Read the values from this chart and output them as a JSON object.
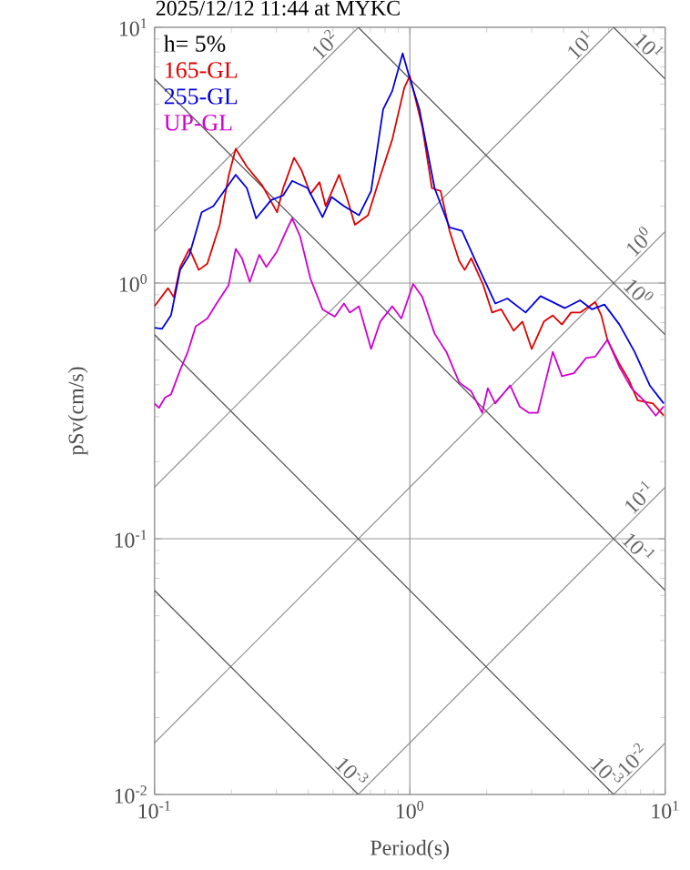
{
  "chart_data": {
    "type": "line",
    "title": "2025/12/12 11:44 at MYKC",
    "xlabel": "Period(s)",
    "ylabel": "pSv(cm/s)",
    "legend_title": "h= 5%",
    "legend": "top left",
    "log": "xy",
    "grid": true,
    "xlim": [
      0.1,
      10
    ],
    "ylim": [
      0.01,
      10
    ],
    "xticks": [
      {
        "value": 0.1,
        "label": "10$^{-1}$"
      },
      {
        "value": 1,
        "label": "10$^{0}$"
      },
      {
        "value": 10,
        "label": "10$^{1}$"
      }
    ],
    "yticks": [
      {
        "value": 0.01,
        "label": "10$^{-2}$"
      },
      {
        "value": 0.1,
        "label": "10$^{-1}$"
      },
      {
        "value": 1,
        "label": "10$^{0}$"
      },
      {
        "value": 10,
        "label": "10$^{1}$"
      }
    ],
    "series": [
      {
        "type": "line",
        "color": "#8c8c8c",
        "x": [
          0.1,
          0.628
        ],
        "values": [
          1.59,
          10
        ]
      },
      {
        "type": "line",
        "color": "#8c8c8c",
        "x": [
          0.1,
          6.28
        ],
        "values": [
          0.159,
          10
        ]
      },
      {
        "type": "line",
        "color": "#8c8c8c",
        "x": [
          0.1,
          10
        ],
        "values": [
          0.0159,
          1.59
        ]
      },
      {
        "type": "line",
        "color": "#8c8c8c",
        "x": [
          0.628,
          10
        ],
        "values": [
          0.01,
          0.159
        ]
      },
      {
        "type": "line",
        "color": "#8c8c8c",
        "x": [
          6.28,
          10
        ],
        "values": [
          0.01,
          0.0159
        ]
      },
      {
        "type": "line",
        "color": "#505050",
        "x": [
          6.28,
          10
        ],
        "values": [
          10,
          6.28
        ]
      },
      {
        "type": "line",
        "color": "#505050",
        "x": [
          0.628,
          10
        ],
        "values": [
          10,
          0.628
        ]
      },
      {
        "type": "line",
        "color": "#505050",
        "x": [
          0.1,
          10
        ],
        "values": [
          6.28,
          0.0628
        ]
      },
      {
        "type": "line",
        "color": "#505050",
        "x": [
          0.1,
          6.28
        ],
        "values": [
          0.628,
          0.01
        ]
      },
      {
        "type": "line",
        "color": "#505050",
        "x": [
          0.1,
          0.628
        ],
        "values": [
          0.0628,
          0.01
        ]
      },
      {
        "type": "line",
        "name": "165-GL",
        "color": "#e00000",
        "x": [
          0.1,
          0.113,
          0.119,
          0.126,
          0.137,
          0.149,
          0.161,
          0.18,
          0.195,
          0.208,
          0.23,
          0.264,
          0.302,
          0.319,
          0.352,
          0.376,
          0.408,
          0.443,
          0.468,
          0.528,
          0.566,
          0.609,
          0.686,
          0.766,
          0.853,
          0.952,
          1.0,
          1.12,
          1.22,
          1.32,
          1.43,
          1.56,
          1.64,
          1.74,
          1.94,
          2.1,
          2.28,
          2.55,
          2.76,
          3.0,
          3.35,
          3.63,
          3.94,
          4.28,
          4.64,
          5.32,
          5.62,
          5.94,
          6.62,
          7.18,
          7.8,
          8.95,
          9.87
        ],
        "values": [
          0.811,
          0.955,
          0.88,
          1.155,
          1.36,
          1.125,
          1.19,
          1.69,
          2.62,
          3.35,
          2.85,
          2.41,
          1.89,
          2.35,
          3.09,
          2.77,
          2.23,
          2.48,
          2.0,
          2.65,
          2.17,
          1.69,
          1.84,
          2.62,
          3.64,
          5.82,
          6.46,
          4.06,
          2.35,
          2.29,
          1.6,
          1.22,
          1.125,
          1.25,
          0.98,
          0.767,
          0.789,
          0.651,
          0.707,
          0.552,
          0.707,
          0.747,
          0.688,
          0.767,
          0.767,
          0.842,
          0.747,
          0.6,
          0.482,
          0.421,
          0.348,
          0.338,
          0.303
        ]
      },
      {
        "type": "line",
        "name": "255-GL",
        "color": "#0000e0",
        "x": [
          0.1,
          0.107,
          0.116,
          0.126,
          0.137,
          0.153,
          0.17,
          0.185,
          0.208,
          0.23,
          0.25,
          0.286,
          0.319,
          0.346,
          0.398,
          0.455,
          0.494,
          0.552,
          0.632,
          0.705,
          0.786,
          0.853,
          0.937,
          1.0,
          1.09,
          1.25,
          1.43,
          1.6,
          1.83,
          2.16,
          2.41,
          2.84,
          3.25,
          4.05,
          4.64,
          5.17,
          5.78,
          6.62,
          7.59,
          8.7,
          9.87
        ],
        "values": [
          0.669,
          0.662,
          0.747,
          1.125,
          1.29,
          1.89,
          2.0,
          2.25,
          2.65,
          2.35,
          1.79,
          2.11,
          2.2,
          2.51,
          2.35,
          1.81,
          2.17,
          2.0,
          1.84,
          2.29,
          4.78,
          5.63,
          7.91,
          6.29,
          4.78,
          2.35,
          1.65,
          1.6,
          1.19,
          0.832,
          0.87,
          0.767,
          0.889,
          0.798,
          0.856,
          0.789,
          0.824,
          0.688,
          0.538,
          0.398,
          0.338
        ]
      },
      {
        "type": "line",
        "name": "UP-GL",
        "color": "#d000d0",
        "x": [
          0.1,
          0.104,
          0.11,
          0.116,
          0.126,
          0.135,
          0.145,
          0.161,
          0.175,
          0.195,
          0.208,
          0.22,
          0.236,
          0.257,
          0.274,
          0.302,
          0.328,
          0.346,
          0.372,
          0.408,
          0.455,
          0.508,
          0.552,
          0.582,
          0.632,
          0.705,
          0.766,
          0.853,
          0.926,
          1.03,
          1.12,
          1.25,
          1.39,
          1.56,
          1.74,
          1.92,
          2.02,
          2.16,
          2.47,
          2.69,
          2.92,
          3.17,
          3.63,
          3.94,
          4.39,
          4.9,
          5.32,
          5.94,
          6.62,
          7.38,
          8.24,
          9.18,
          9.87
        ],
        "values": [
          0.338,
          0.325,
          0.357,
          0.367,
          0.457,
          0.538,
          0.677,
          0.727,
          0.832,
          0.98,
          1.36,
          1.25,
          1.01,
          1.29,
          1.155,
          1.33,
          1.6,
          1.79,
          1.52,
          1.04,
          0.789,
          0.739,
          0.832,
          0.767,
          0.811,
          0.552,
          0.707,
          0.811,
          0.727,
          0.992,
          0.88,
          0.634,
          0.538,
          0.409,
          0.377,
          0.311,
          0.388,
          0.338,
          0.398,
          0.329,
          0.311,
          0.311,
          0.538,
          0.432,
          0.444,
          0.509,
          0.515,
          0.6,
          0.469,
          0.388,
          0.348,
          0.303,
          0.329
        ]
      }
    ],
    "annotations": [
      {
        "text": "10$^{2}$",
        "x": 0.5,
        "y": 7.96
      },
      {
        "text": "10$^{1}$",
        "x": 5,
        "y": 7.96
      },
      {
        "text": "10$^{1}$",
        "x": 8,
        "y": 7.85
      },
      {
        "text": "10$^{0}$",
        "x": 8.5,
        "y": 1.35
      },
      {
        "text": "10$^{0}$",
        "x": 7.3,
        "y": 0.86
      },
      {
        "text": "10$^{-1}$",
        "x": 8.5,
        "y": 0.135
      },
      {
        "text": "10$^{-1}$",
        "x": 7.3,
        "y": 0.086
      },
      {
        "text": "10$^{-3}$",
        "x": 5.5,
        "y": 0.0114
      },
      {
        "text": "10$^{-2}$",
        "x": 8,
        "y": 0.0127
      },
      {
        "text": "10$^{-3}$",
        "x": 0.55,
        "y": 0.0114
      }
    ]
  }
}
